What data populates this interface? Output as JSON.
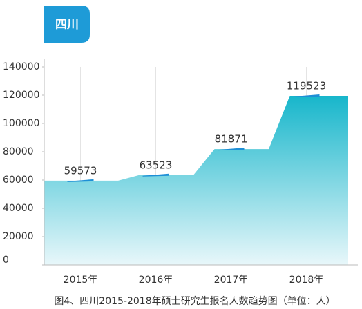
{
  "chart_data": {
    "type": "area",
    "title": "四川",
    "caption": "图4、四川2015-2018年硕士研究生报名人数趋势图（单位：人）",
    "categories": [
      "2015年",
      "2016年",
      "2017年",
      "2018年"
    ],
    "values": [
      59573,
      63523,
      81871,
      119523
    ],
    "color": "#1ab9cd",
    "ylim": [
      0,
      140000
    ],
    "yticks": [
      0,
      20000,
      40000,
      60000,
      80000,
      100000,
      120000,
      140000
    ],
    "grid": true
  }
}
